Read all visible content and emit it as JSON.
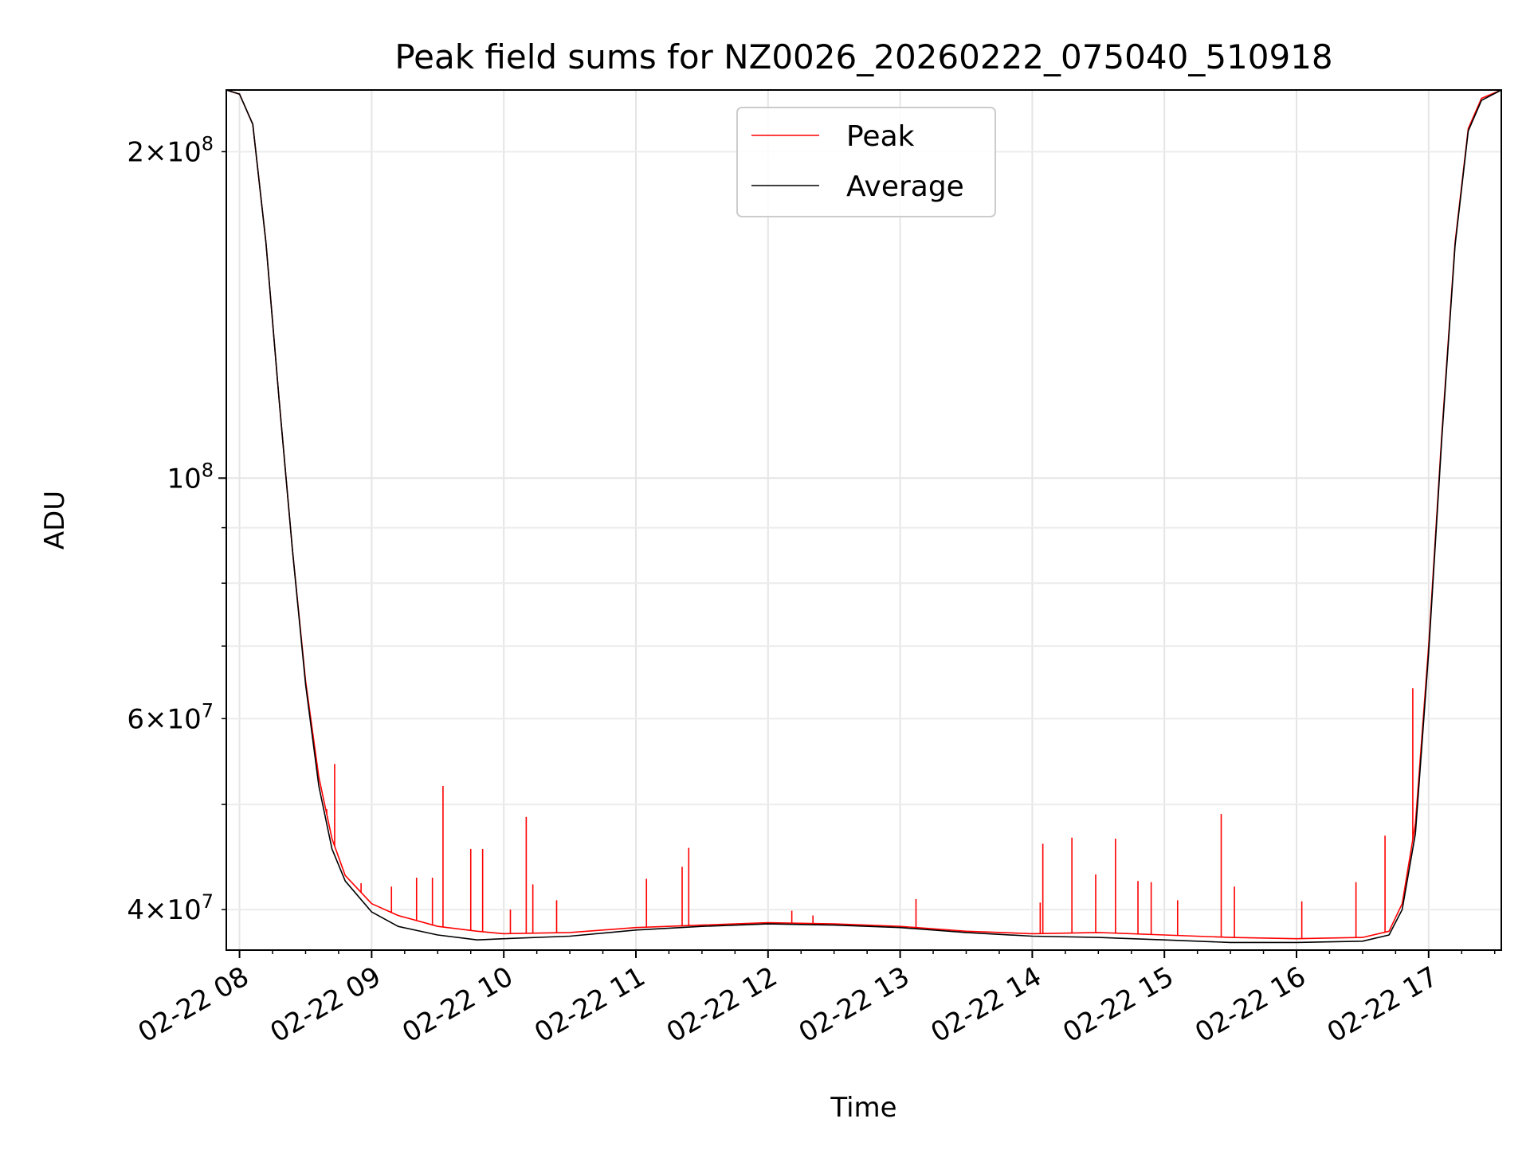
{
  "chart_data": {
    "type": "line",
    "title": "Peak field sums for NZ0026_20260222_075040_510918",
    "xlabel": "Time",
    "ylabel": "ADU",
    "yscale": "log",
    "grid": true,
    "legend_location": "upper center",
    "x_unit": "hours since 2026-02-22 00:00",
    "xlim": [
      7.9,
      17.55
    ],
    "ylim": [
      36700000,
      228000000
    ],
    "x_ticks": [
      {
        "value": 8,
        "label": "02-22 08"
      },
      {
        "value": 9,
        "label": "02-22 09"
      },
      {
        "value": 10,
        "label": "02-22 10"
      },
      {
        "value": 11,
        "label": "02-22 11"
      },
      {
        "value": 12,
        "label": "02-22 12"
      },
      {
        "value": 13,
        "label": "02-22 13"
      },
      {
        "value": 14,
        "label": "02-22 14"
      },
      {
        "value": 15,
        "label": "02-22 15"
      },
      {
        "value": 16,
        "label": "02-22 16"
      },
      {
        "value": 17,
        "label": "02-22 17"
      }
    ],
    "y_major_ticks": [
      {
        "value": 100000000,
        "base": "10",
        "exp": "8",
        "coef": ""
      }
    ],
    "y_minor_ticks": [
      {
        "value": 40000000,
        "coef": "4",
        "base": "10",
        "exp": "7"
      },
      {
        "value": 60000000,
        "coef": "6",
        "base": "10",
        "exp": "7"
      },
      {
        "value": 200000000,
        "coef": "2",
        "base": "10",
        "exp": "8"
      },
      {
        "value": 50000000
      },
      {
        "value": 70000000
      },
      {
        "value": 80000000
      },
      {
        "value": 90000000
      }
    ],
    "series": [
      {
        "name": "Peak",
        "color": "#ff0000",
        "x": [
          7.9,
          8.0,
          8.1,
          8.2,
          8.3,
          8.4,
          8.5,
          8.6,
          8.7,
          8.8,
          9.0,
          9.2,
          9.5,
          9.8,
          10.0,
          10.5,
          11.0,
          11.5,
          12.0,
          12.5,
          13.0,
          13.5,
          14.0,
          14.5,
          15.0,
          15.5,
          16.0,
          16.5,
          16.7,
          16.8,
          16.9,
          17.0,
          17.1,
          17.2,
          17.3,
          17.4,
          17.55
        ],
        "values": [
          228000000,
          226000000,
          212000000,
          165000000,
          118000000,
          86000000,
          65000000,
          53000000,
          46500000,
          43000000,
          40500000,
          39500000,
          38600000,
          38200000,
          38000000,
          38100000,
          38500000,
          38700000,
          38900000,
          38800000,
          38600000,
          38200000,
          38000000,
          38100000,
          37900000,
          37700000,
          37600000,
          37700000,
          38200000,
          40500000,
          48000000,
          70000000,
          110000000,
          165000000,
          210000000,
          224000000,
          228000000
        ],
        "spikes": [
          {
            "x": 8.72,
            "value": 54500000
          },
          {
            "x": 8.66,
            "value": 49500000
          },
          {
            "x": 8.92,
            "value": 42300000
          },
          {
            "x": 9.15,
            "value": 42000000
          },
          {
            "x": 9.34,
            "value": 42800000
          },
          {
            "x": 9.46,
            "value": 42800000
          },
          {
            "x": 9.54,
            "value": 52000000
          },
          {
            "x": 9.75,
            "value": 45500000
          },
          {
            "x": 9.84,
            "value": 45500000
          },
          {
            "x": 10.05,
            "value": 40000000
          },
          {
            "x": 10.17,
            "value": 48700000
          },
          {
            "x": 10.22,
            "value": 42200000
          },
          {
            "x": 10.4,
            "value": 40800000
          },
          {
            "x": 11.08,
            "value": 42700000
          },
          {
            "x": 11.35,
            "value": 43800000
          },
          {
            "x": 11.4,
            "value": 45600000
          },
          {
            "x": 12.18,
            "value": 39900000
          },
          {
            "x": 12.34,
            "value": 39500000
          },
          {
            "x": 13.12,
            "value": 40900000
          },
          {
            "x": 14.06,
            "value": 40600000
          },
          {
            "x": 14.08,
            "value": 46000000
          },
          {
            "x": 14.3,
            "value": 46600000
          },
          {
            "x": 14.48,
            "value": 43100000
          },
          {
            "x": 14.63,
            "value": 46500000
          },
          {
            "x": 14.8,
            "value": 42500000
          },
          {
            "x": 14.9,
            "value": 42400000
          },
          {
            "x": 15.1,
            "value": 40800000
          },
          {
            "x": 15.43,
            "value": 49000000
          },
          {
            "x": 15.53,
            "value": 42000000
          },
          {
            "x": 16.04,
            "value": 40700000
          },
          {
            "x": 16.45,
            "value": 42400000
          },
          {
            "x": 16.67,
            "value": 46800000
          },
          {
            "x": 16.88,
            "value": 64000000
          }
        ]
      },
      {
        "name": "Average",
        "color": "#000000",
        "x": [
          7.9,
          8.0,
          8.1,
          8.2,
          8.3,
          8.4,
          8.5,
          8.6,
          8.7,
          8.8,
          9.0,
          9.2,
          9.5,
          9.8,
          10.0,
          10.5,
          11.0,
          11.5,
          12.0,
          12.5,
          13.0,
          13.5,
          14.0,
          14.5,
          15.0,
          15.5,
          16.0,
          16.5,
          16.7,
          16.8,
          16.9,
          17.0,
          17.1,
          17.2,
          17.3,
          17.4,
          17.55
        ],
        "values": [
          228000000,
          226000000,
          212000000,
          165000000,
          118000000,
          86000000,
          64500000,
          52000000,
          45500000,
          42500000,
          39800000,
          38600000,
          37900000,
          37500000,
          37600000,
          37800000,
          38300000,
          38600000,
          38800000,
          38700000,
          38500000,
          38100000,
          37800000,
          37700000,
          37500000,
          37300000,
          37300000,
          37400000,
          37900000,
          40000000,
          47000000,
          69000000,
          109000000,
          164000000,
          209000000,
          223000000,
          228000000
        ]
      }
    ]
  }
}
